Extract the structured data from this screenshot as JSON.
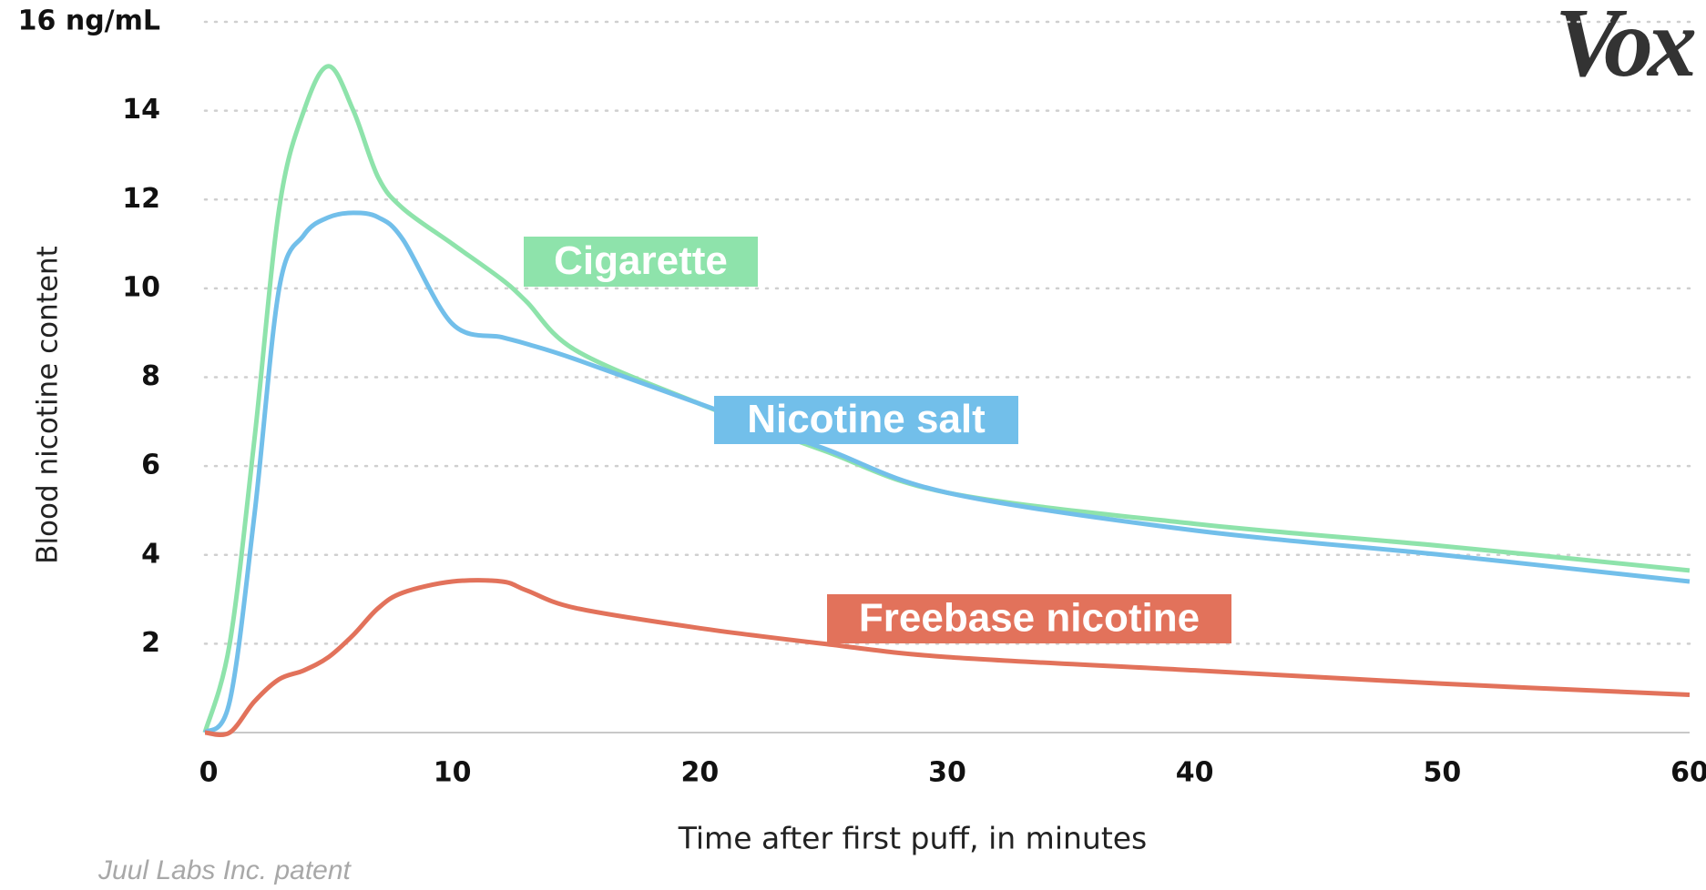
{
  "chart_data": {
    "type": "line",
    "y_label": "Blood nicotine content",
    "x_label": "Time after first puff, in minutes",
    "source": "Juul Labs Inc. patent",
    "logo": "Vox",
    "x": [
      0,
      1,
      2,
      3,
      4,
      5,
      6,
      7,
      8,
      10,
      12,
      13,
      15,
      20,
      25,
      30,
      40,
      50,
      60
    ],
    "series": [
      {
        "name": "Cigarette",
        "color": "#8ee3ab",
        "values": [
          0,
          2,
          6.6,
          11.8,
          14,
          15,
          14,
          12.5,
          11.8,
          11,
          10.2,
          9.7,
          8.6,
          7.4,
          6.35,
          5.4,
          4.7,
          4.2,
          3.65
        ]
      },
      {
        "name": "Nicotine salt",
        "color": "#72bfea",
        "values": [
          0,
          0.7,
          4.9,
          10,
          11.2,
          11.6,
          11.7,
          11.6,
          11.1,
          9.2,
          8.9,
          8.75,
          8.4,
          7.4,
          6.4,
          5.4,
          4.55,
          4,
          3.4
        ]
      },
      {
        "name": "Freebase nicotine",
        "color": "#e2725b",
        "values": [
          0,
          0,
          0.7,
          1.2,
          1.4,
          1.7,
          2.2,
          2.8,
          3.15,
          3.4,
          3.4,
          3.2,
          2.8,
          2.35,
          2,
          1.7,
          1.4,
          1.1,
          0.85
        ]
      }
    ],
    "xlim": [
      0,
      60
    ],
    "xticks": [
      0,
      10,
      20,
      30,
      40,
      50,
      60
    ],
    "ylim": [
      0,
      16
    ],
    "yticks": [
      2,
      4,
      6,
      8,
      10,
      12,
      14,
      {
        "value": 16,
        "label": "16 ng/mL"
      }
    ],
    "grid": true
  }
}
